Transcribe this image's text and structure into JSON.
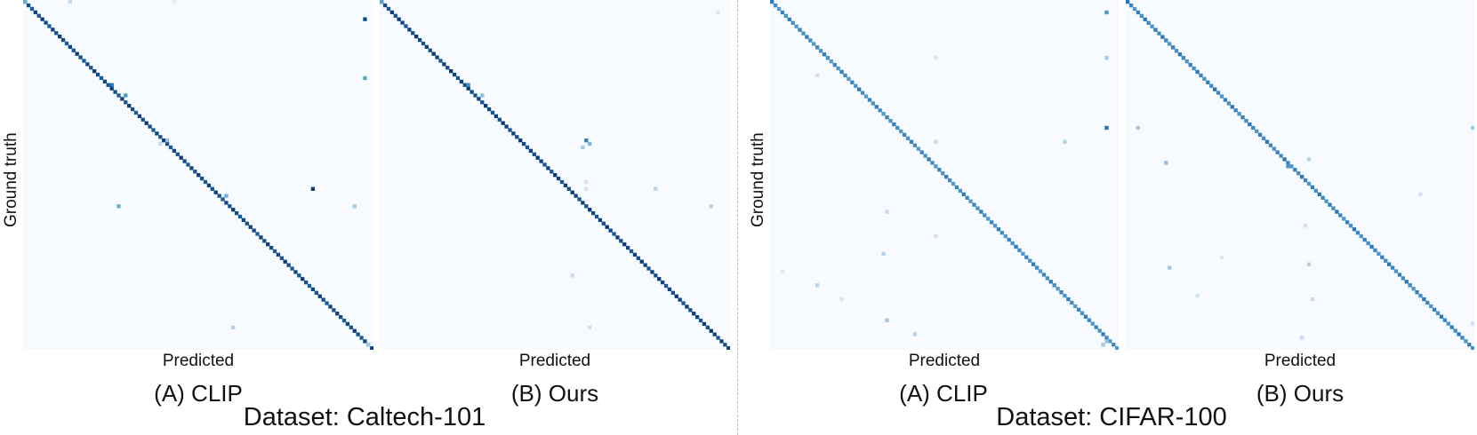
{
  "chart_data": [
    {
      "type": "heatmap",
      "dataset": "Dataset: Caltech-101",
      "subtitle": "(A) CLIP",
      "xlabel": "Predicted",
      "ylabel": "Ground truth",
      "num_classes": 101,
      "diagonal_value": 0.95,
      "colormap": "Blues",
      "off_diagonal": [
        [
          0,
          0,
          0.5
        ],
        [
          13,
          0,
          0.25
        ],
        [
          43,
          0,
          0.1
        ],
        [
          98,
          5,
          0.9
        ],
        [
          98,
          22,
          0.55
        ],
        [
          25,
          24,
          0.75
        ],
        [
          29,
          27,
          0.6
        ],
        [
          41,
          40,
          0.4
        ],
        [
          39,
          41,
          0.25
        ],
        [
          83,
          54,
          0.95
        ],
        [
          58,
          56,
          0.5
        ],
        [
          27,
          59,
          0.5
        ],
        [
          95,
          59,
          0.35
        ],
        [
          60,
          94,
          0.3
        ],
        [
          99,
          99,
          0.35
        ]
      ]
    },
    {
      "type": "heatmap",
      "subtitle": "(B) Ours",
      "xlabel": "Predicted",
      "num_classes": 101,
      "diagonal_value": 0.97,
      "colormap": "Blues",
      "off_diagonal": [
        [
          0,
          0,
          0.55
        ],
        [
          97,
          3,
          0.15
        ],
        [
          25,
          24,
          0.65
        ],
        [
          29,
          27,
          0.4
        ],
        [
          59,
          40,
          0.7
        ],
        [
          60,
          41,
          0.45
        ],
        [
          58,
          42,
          0.35
        ],
        [
          59,
          52,
          0.2
        ],
        [
          59,
          54,
          0.2
        ],
        [
          79,
          54,
          0.3
        ],
        [
          95,
          59,
          0.3
        ],
        [
          55,
          79,
          0.25
        ],
        [
          60,
          94,
          0.2
        ]
      ]
    },
    {
      "type": "heatmap",
      "dataset": "Dataset: CIFAR-100",
      "subtitle": "(A) CLIP",
      "xlabel": "Predicted",
      "ylabel": "Ground truth",
      "num_classes": 100,
      "diagonal_value": 0.7,
      "colormap": "Blues",
      "off_diagonal": [
        [
          96,
          3,
          0.6
        ],
        [
          96,
          36,
          0.75
        ],
        [
          96,
          16,
          0.35
        ],
        [
          13,
          21,
          0.2
        ],
        [
          47,
          16,
          0.15
        ],
        [
          47,
          40,
          0.25
        ],
        [
          47,
          67,
          0.2
        ],
        [
          32,
          72,
          0.3
        ],
        [
          13,
          81,
          0.3
        ],
        [
          33,
          91,
          0.35
        ],
        [
          41,
          95,
          0.3
        ],
        [
          96,
          97,
          0.4
        ],
        [
          95,
          98,
          0.35
        ],
        [
          84,
          40,
          0.3
        ],
        [
          33,
          60,
          0.25
        ],
        [
          3,
          77,
          0.15
        ],
        [
          20,
          85,
          0.15
        ]
      ]
    },
    {
      "type": "heatmap",
      "subtitle": "(B) Ours",
      "xlabel": "Predicted",
      "num_classes": 100,
      "diagonal_value": 0.72,
      "colormap": "Blues",
      "off_diagonal": [
        [
          46,
          47,
          0.6
        ],
        [
          3,
          36,
          0.35
        ],
        [
          11,
          46,
          0.4
        ],
        [
          99,
          36,
          0.35
        ],
        [
          51,
          64,
          0.2
        ],
        [
          12,
          76,
          0.35
        ],
        [
          20,
          84,
          0.2
        ],
        [
          52,
          75,
          0.3
        ],
        [
          50,
          96,
          0.25
        ],
        [
          52,
          45,
          0.3
        ],
        [
          53,
          85,
          0.25
        ],
        [
          84,
          55,
          0.2
        ],
        [
          27,
          73,
          0.15
        ],
        [
          99,
          92,
          0.2
        ]
      ]
    }
  ]
}
